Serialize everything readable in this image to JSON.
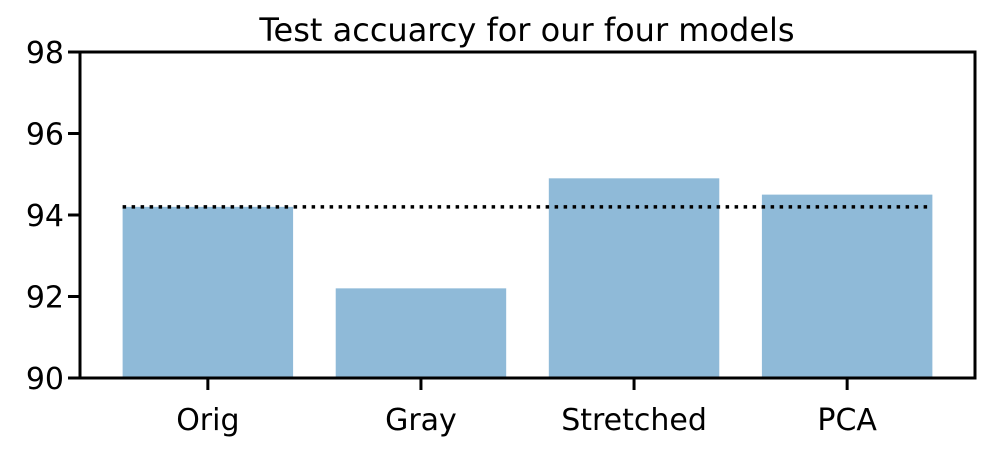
{
  "chart_data": {
    "type": "bar",
    "title": "Test accuarcy for our four models",
    "xlabel": "",
    "ylabel": "",
    "categories": [
      "Orig",
      "Gray",
      "Stretched",
      "PCA"
    ],
    "values": [
      94.2,
      92.2,
      94.9,
      94.5
    ],
    "ylim": [
      90,
      98
    ],
    "yticks": [
      90,
      92,
      94,
      96,
      98
    ],
    "ytick_labels": [
      "90",
      "92",
      "94",
      "96",
      "98"
    ],
    "reference_line": {
      "value": 94.2,
      "style": "dotted"
    },
    "grid": false,
    "legend": "none",
    "bar_color": "#8fbad8",
    "axis_color": "#000000"
  }
}
